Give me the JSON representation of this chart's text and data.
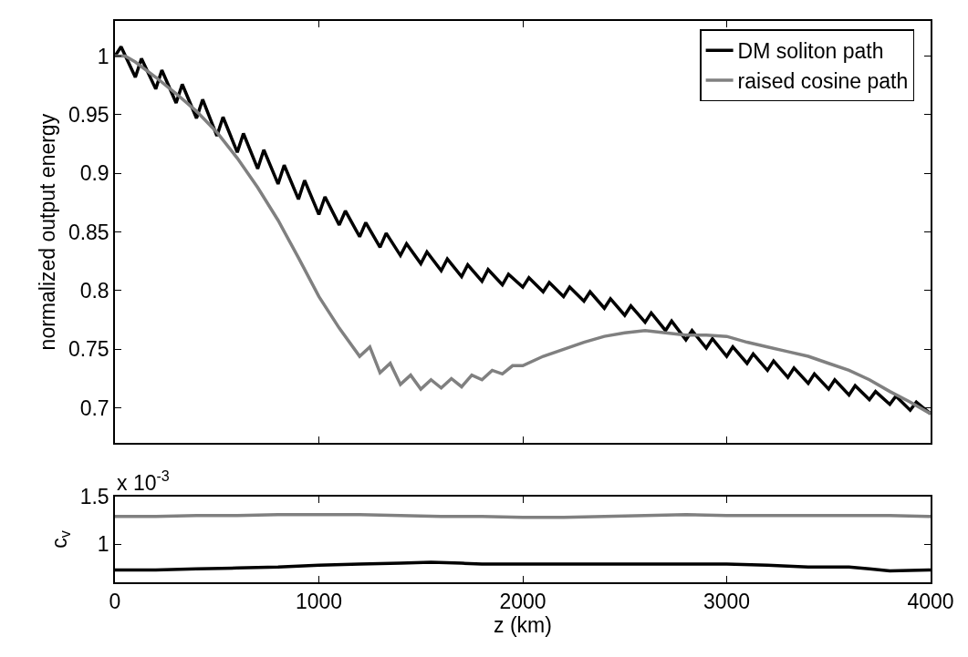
{
  "chart_data": [
    {
      "type": "line",
      "ylabel": "normalized output energy",
      "legend": "top right",
      "tick_labels": "y",
      "xlim": [
        0,
        4000
      ],
      "xticks": [
        0,
        1000,
        2000,
        3000,
        4000
      ],
      "ylim": [
        0.67,
        1.03
      ],
      "yticks": [
        0.7,
        0.75,
        0.8,
        0.85,
        0.9,
        0.95,
        1
      ],
      "series": [
        {
          "name": "DM soliton path",
          "color": "#000000",
          "x": [
            0,
            30,
            100,
            130,
            200,
            230,
            300,
            330,
            400,
            430,
            500,
            530,
            600,
            630,
            700,
            730,
            800,
            830,
            900,
            930,
            1000,
            1030,
            1100,
            1130,
            1200,
            1230,
            1300,
            1330,
            1400,
            1430,
            1500,
            1530,
            1600,
            1630,
            1700,
            1730,
            1800,
            1830,
            1900,
            1930,
            2000,
            2030,
            2100,
            2130,
            2200,
            2230,
            2300,
            2330,
            2400,
            2430,
            2500,
            2530,
            2600,
            2630,
            2700,
            2730,
            2800,
            2830,
            2900,
            2930,
            3000,
            3030,
            3100,
            3130,
            3200,
            3230,
            3300,
            3330,
            3400,
            3430,
            3500,
            3530,
            3600,
            3630,
            3700,
            3730,
            3800,
            3830,
            3900,
            3930,
            4000
          ],
          "values": [
            1.0,
            1.008,
            0.982,
            0.998,
            0.972,
            0.988,
            0.96,
            0.976,
            0.947,
            0.963,
            0.932,
            0.948,
            0.918,
            0.934,
            0.904,
            0.92,
            0.891,
            0.907,
            0.878,
            0.894,
            0.865,
            0.88,
            0.856,
            0.868,
            0.846,
            0.858,
            0.837,
            0.849,
            0.83,
            0.84,
            0.823,
            0.833,
            0.817,
            0.827,
            0.812,
            0.822,
            0.808,
            0.818,
            0.805,
            0.814,
            0.803,
            0.811,
            0.799,
            0.807,
            0.795,
            0.803,
            0.791,
            0.799,
            0.785,
            0.793,
            0.779,
            0.787,
            0.773,
            0.781,
            0.766,
            0.774,
            0.758,
            0.766,
            0.751,
            0.759,
            0.744,
            0.752,
            0.738,
            0.746,
            0.732,
            0.74,
            0.726,
            0.734,
            0.721,
            0.729,
            0.716,
            0.724,
            0.711,
            0.719,
            0.707,
            0.714,
            0.703,
            0.71,
            0.698,
            0.705,
            0.695
          ]
        },
        {
          "name": "raised cosine path",
          "color": "#808080",
          "x": [
            0,
            50,
            100,
            200,
            300,
            400,
            500,
            600,
            700,
            800,
            900,
            1000,
            1100,
            1200,
            1250,
            1300,
            1350,
            1400,
            1450,
            1500,
            1550,
            1600,
            1650,
            1700,
            1750,
            1800,
            1850,
            1900,
            1950,
            2000,
            2100,
            2200,
            2300,
            2400,
            2500,
            2600,
            2700,
            2800,
            2900,
            3000,
            3100,
            3200,
            3300,
            3400,
            3500,
            3600,
            3700,
            3800,
            3900,
            4000
          ],
          "values": [
            1.0,
            1.0,
            0.995,
            0.982,
            0.968,
            0.953,
            0.935,
            0.913,
            0.888,
            0.86,
            0.828,
            0.795,
            0.768,
            0.744,
            0.752,
            0.73,
            0.738,
            0.72,
            0.728,
            0.716,
            0.724,
            0.717,
            0.725,
            0.718,
            0.728,
            0.724,
            0.732,
            0.729,
            0.736,
            0.736,
            0.744,
            0.75,
            0.756,
            0.761,
            0.764,
            0.766,
            0.764,
            0.762,
            0.762,
            0.761,
            0.756,
            0.752,
            0.748,
            0.744,
            0.738,
            0.732,
            0.724,
            0.714,
            0.705,
            0.695
          ]
        }
      ]
    },
    {
      "type": "line",
      "ylabel": "c$_{v}$",
      "xlabel": "z (km)",
      "annotations": [
        "x 10$^{-3}$"
      ],
      "legend": false,
      "xlim": [
        0,
        4000
      ],
      "xticks": [
        0,
        1000,
        2000,
        3000,
        4000
      ],
      "ylim": [
        0.6,
        1.5
      ],
      "yticks": [
        1,
        1.5
      ],
      "series": [
        {
          "color": "#808080",
          "x": [
            0,
            200,
            400,
            600,
            800,
            1000,
            1200,
            1400,
            1600,
            1800,
            2000,
            2200,
            2400,
            2600,
            2800,
            3000,
            3200,
            3400,
            3600,
            3800,
            4000
          ],
          "values": [
            1.29,
            1.29,
            1.3,
            1.3,
            1.31,
            1.31,
            1.31,
            1.3,
            1.29,
            1.29,
            1.28,
            1.28,
            1.29,
            1.3,
            1.31,
            1.3,
            1.3,
            1.3,
            1.3,
            1.3,
            1.29
          ]
        },
        {
          "color": "#000000",
          "x": [
            0,
            200,
            400,
            600,
            800,
            1000,
            1200,
            1400,
            1550,
            1700,
            1800,
            2000,
            2200,
            2400,
            2600,
            2800,
            3000,
            3200,
            3400,
            3600,
            3700,
            3800,
            4000
          ],
          "values": [
            0.73,
            0.73,
            0.74,
            0.75,
            0.76,
            0.78,
            0.79,
            0.8,
            0.81,
            0.8,
            0.79,
            0.79,
            0.79,
            0.79,
            0.79,
            0.79,
            0.79,
            0.78,
            0.76,
            0.76,
            0.74,
            0.72,
            0.73
          ]
        }
      ]
    }
  ]
}
